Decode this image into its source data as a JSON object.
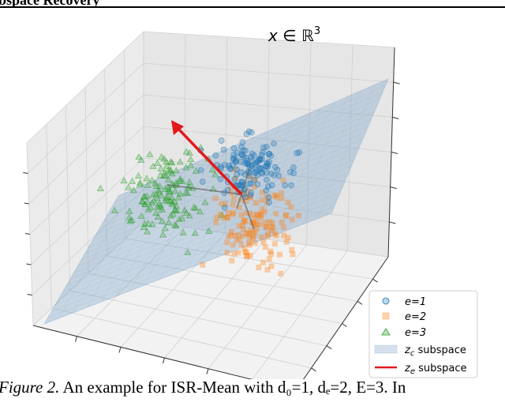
{
  "header": {
    "section_title": "Subspace Recovery"
  },
  "figure": {
    "plot_title_base": "x ∈ ℝ",
    "plot_title_sup": "3",
    "caption_label": "Figure 2.",
    "caption_text": " An example for ISR-Mean with d₀=1, dₑ=2, E=3. In"
  },
  "chart_data": {
    "type": "scatter",
    "dimensions": 3,
    "title": "x ∈ ℝ3",
    "grid": true,
    "legend_placement": "bottom-right",
    "series": [
      {
        "name": "e=1",
        "label": "e=1",
        "marker": "circle",
        "color": "#1f77b4",
        "count": 130
      },
      {
        "name": "e=2",
        "label": "e=2",
        "marker": "square",
        "color": "#ff7f0e",
        "count": 140
      },
      {
        "name": "e=3",
        "label": "e=3",
        "marker": "triangle",
        "color": "#2ca02c",
        "count": 140
      }
    ],
    "legend": {
      "subspace_c": "z",
      "subspace_c_sub": "c",
      "subspace_e": "z",
      "subspace_e_sub": "e",
      "subspace_word": " subspace"
    },
    "colors": {
      "plane": "#6f9bc4",
      "arrow": "#e31a1c",
      "connector": "#666666"
    }
  }
}
